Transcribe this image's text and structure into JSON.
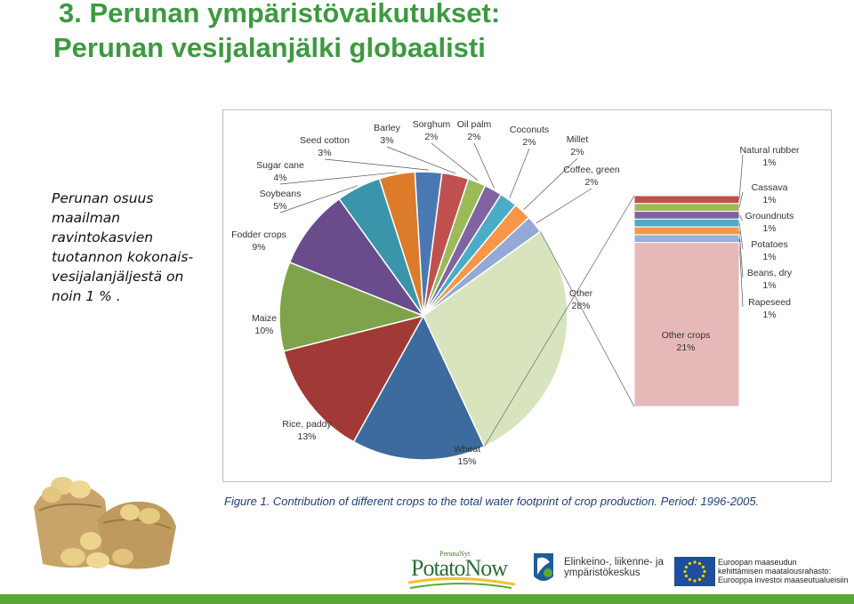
{
  "slide": {
    "title_line1": "3. Perunan ympäristövaikutukset:",
    "title_line2": "Perunan vesijalanjälki globaalisti",
    "text_lines": [
      "Perunan osuus",
      "maailman",
      "ravintokasvien",
      "tuotannon kokonais-",
      "vesijalanjäljestä on",
      "noin 1 % ."
    ],
    "caption": "Figure 1. Contribution of different crops to the total water footprint of crop production. Period: 1996-2005.",
    "colors": {
      "title": "#3c9a3f",
      "caption": "#1f3d7a",
      "footer_bar": "#5aa834"
    }
  },
  "chart_data": {
    "type": "pie",
    "title": "",
    "slices": [
      {
        "label": "Wheat",
        "value": 15,
        "display": "15%",
        "color": "#3d6b9e"
      },
      {
        "label": "Rice, paddy",
        "value": 13,
        "display": "13%",
        "color": "#a13a36"
      },
      {
        "label": "Maize",
        "value": 10,
        "display": "10%",
        "color": "#7ea34a"
      },
      {
        "label": "Fodder crops",
        "value": 9,
        "display": "9%",
        "color": "#6a4c8c"
      },
      {
        "label": "Soybeans",
        "value": 5,
        "display": "5%",
        "color": "#3a95aa"
      },
      {
        "label": "Sugar cane",
        "value": 4,
        "display": "4%",
        "color": "#dc7b2a"
      },
      {
        "label": "Seed cotton",
        "value": 3,
        "display": "3%",
        "color": "#4a78b3"
      },
      {
        "label": "Barley",
        "value": 3,
        "display": "3%",
        "color": "#c0504d"
      },
      {
        "label": "Sorghum",
        "value": 2,
        "display": "2%",
        "color": "#9bbb59"
      },
      {
        "label": "Oil palm",
        "value": 2,
        "display": "2%",
        "color": "#8064a2"
      },
      {
        "label": "Coconuts",
        "value": 2,
        "display": "2%",
        "color": "#4bacc6"
      },
      {
        "label": "Millet",
        "value": 2,
        "display": "2%",
        "color": "#f79646"
      },
      {
        "label": "Coffee, green",
        "value": 2,
        "display": "2%",
        "color": "#95a9d6"
      },
      {
        "label": "Other",
        "value": 28,
        "display": "28%",
        "color": "#d7e4bd"
      }
    ],
    "breakdown": {
      "of": "Other",
      "items": [
        {
          "label": "Natural rubber",
          "value": 1,
          "display": "1%",
          "color": "#c0504d"
        },
        {
          "label": "Cassava",
          "value": 1,
          "display": "1%",
          "color": "#9bbb59"
        },
        {
          "label": "Groundnuts",
          "value": 1,
          "display": "1%",
          "color": "#8064a2"
        },
        {
          "label": "Potatoes",
          "value": 1,
          "display": "1%",
          "color": "#4bacc6"
        },
        {
          "label": "Beans, dry",
          "value": 1,
          "display": "1%",
          "color": "#f79646"
        },
        {
          "label": "Rapeseed",
          "value": 1,
          "display": "1%",
          "color": "#95b3d7"
        },
        {
          "label": "Other crops",
          "value": 21,
          "display": "21%",
          "color": "#e6b9b8"
        }
      ]
    }
  },
  "logos": {
    "perunanyt_small": "PerunaNyt",
    "potatonow": "PotatoNow",
    "ely_line1": "Elinkeino-, liikenne- ja",
    "ely_line2": "ympäristökeskus",
    "eu_line1": "Euroopan maaseudun",
    "eu_line2": "kehittämisen maatalousrahasto:",
    "eu_line3": "Eurooppa investoi maaseutualueisiin"
  }
}
